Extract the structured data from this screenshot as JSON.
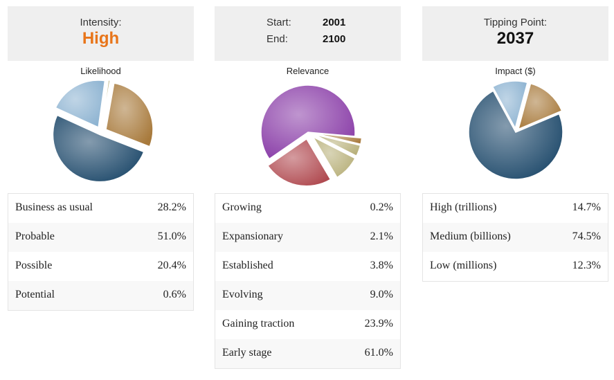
{
  "intensity": {
    "label": "Intensity:",
    "value": "High",
    "color": "#e8751a"
  },
  "range": {
    "start_label": "Start:",
    "start_value": "2001",
    "end_label": "End:",
    "end_value": "2100"
  },
  "tipping": {
    "label": "Tipping Point:",
    "value": "2037"
  },
  "chart_data": [
    {
      "type": "pie",
      "title": "Likelihood",
      "categories": [
        "Business as usual",
        "Probable",
        "Possible",
        "Potential"
      ],
      "values": [
        28.2,
        51.0,
        20.4,
        0.6
      ],
      "value_labels": [
        "28.2%",
        "51.0%",
        "20.4%",
        "0.6%"
      ]
    },
    {
      "type": "pie",
      "title": "Relevance",
      "categories": [
        "Growing",
        "Expansionary",
        "Established",
        "Evolving",
        "Gaining traction",
        "Early stage"
      ],
      "values": [
        0.2,
        2.1,
        3.8,
        9.0,
        23.9,
        61.0
      ],
      "value_labels": [
        "0.2%",
        "2.1%",
        "3.8%",
        "9.0%",
        "23.9%",
        "61.0%"
      ]
    },
    {
      "type": "pie",
      "title": "Impact ($)",
      "categories": [
        "High (trillions)",
        "Medium (billions)",
        "Low (millions)"
      ],
      "values": [
        14.7,
        74.5,
        12.3
      ],
      "value_labels": [
        "14.7%",
        "74.5%",
        "12.3%"
      ]
    }
  ],
  "colors": {
    "brown": "#a87a3c",
    "navy": "#1f4a6b",
    "lightblue": "#8db3d1",
    "olive": "#b8b07a",
    "purple": "#8a3ea8",
    "red": "#b04a50"
  }
}
